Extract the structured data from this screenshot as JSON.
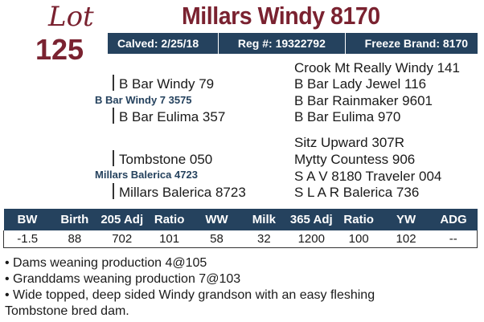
{
  "lot": {
    "label": "Lot",
    "number": "125"
  },
  "animal": {
    "name": "Millars Windy 8170"
  },
  "info": {
    "calved": "Calved: 2/25/18",
    "reg": "Reg #: 19322792",
    "freeze": "Freeze Brand: 8170"
  },
  "pedigree": {
    "sire": "B Bar Windy 7 3575",
    "sire_sire": "B Bar Windy 79",
    "sire_dam": "B Bar Eulima 357",
    "sire_sire_sire": "Crook Mt Really Windy 141",
    "sire_sire_dam": "B Bar Lady Jewel 116",
    "sire_dam_sire": "B Bar Rainmaker 9601",
    "sire_dam_dam": "B Bar Eulima 970",
    "dam": "Millars Balerica 4723",
    "dam_sire": "Tombstone 050",
    "dam_dam": "Millars Balerica 8723",
    "dam_sire_sire": "Sitz Upward 307R",
    "dam_sire_dam": "Mytty Countess 906",
    "dam_dam_sire": "S A V 8180 Traveler 004",
    "dam_dam_dam": "S L A R Balerica 736"
  },
  "performance": {
    "headers": [
      "BW",
      "Birth",
      "205 Adj",
      "Ratio",
      "WW",
      "Milk",
      "365 Adj",
      "Ratio",
      "YW",
      "ADG"
    ],
    "values": [
      "-1.5",
      "88",
      "702",
      "101",
      "58",
      "32",
      "1200",
      "100",
      "102",
      "--"
    ]
  },
  "notes": [
    "• Dams weaning production 4@105",
    "• Granddams weaning production 7@103",
    "• Wide topped, deep sided Windy grandson with an easy fleshing",
    "Tombstone bred dam."
  ],
  "colors": {
    "maroon": "#7a2230",
    "navy": "#25425e"
  }
}
